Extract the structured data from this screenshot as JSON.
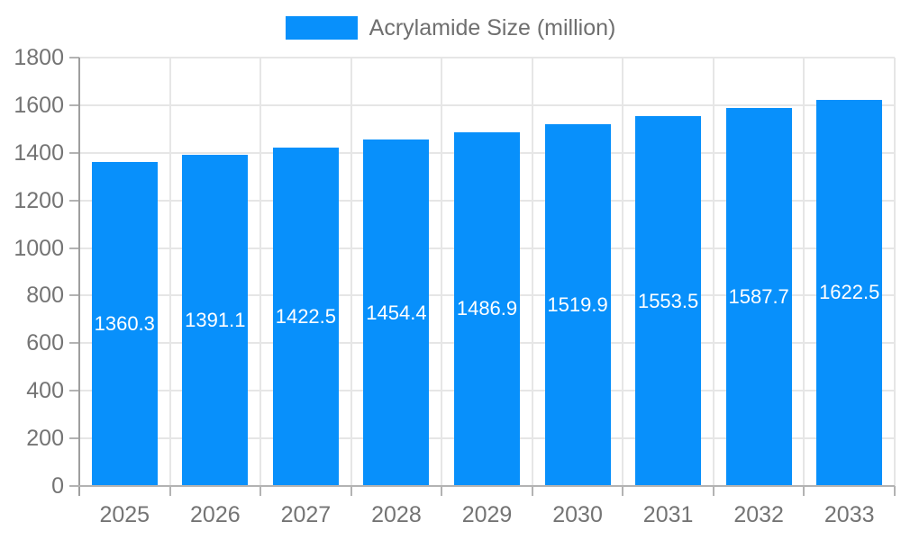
{
  "chart_data": {
    "type": "bar",
    "title": "",
    "legend": {
      "label": "Acrylamide Size (million)",
      "position": "top-center"
    },
    "categories": [
      "2025",
      "2026",
      "2027",
      "2028",
      "2029",
      "2030",
      "2031",
      "2032",
      "2033"
    ],
    "series": [
      {
        "name": "Acrylamide Size (million)",
        "values": [
          1360.3,
          1391.1,
          1422.5,
          1454.4,
          1486.9,
          1519.9,
          1553.5,
          1587.7,
          1622.5
        ]
      }
    ],
    "bar_value_labels": [
      "1360.3",
      "1391.1",
      "1422.5",
      "1454.4",
      "1486.9",
      "1519.9",
      "1553.5",
      "1587.7",
      "1622.5"
    ],
    "xlabel": "",
    "ylabel": "",
    "ylim": [
      0,
      1800
    ],
    "yticks": [
      0,
      200,
      400,
      600,
      800,
      1000,
      1200,
      1400,
      1600,
      1800
    ],
    "grid": true,
    "colors": {
      "bar": "#0890FB",
      "bar_label_text": "#FFFFFF",
      "axis_text": "#747474",
      "legend_text": "#6F6F6F",
      "grid_line": "#E6E6E6",
      "axis_line": "#B3B3B3",
      "y_axis_line": "#9E9E9E",
      "background": "#FFFFFF"
    }
  }
}
